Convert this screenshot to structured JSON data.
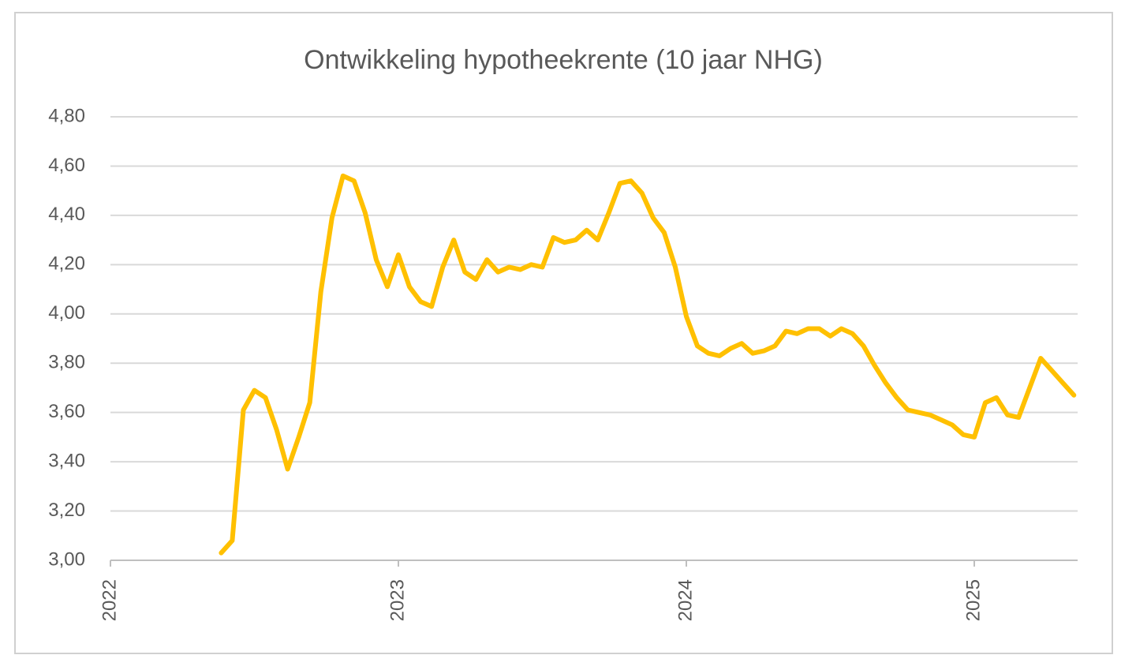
{
  "chart_data": {
    "type": "line",
    "title": "Ontwikkeling hypotheekrente (10 jaar NHG)",
    "categories": [
      "2022",
      null,
      null,
      null,
      null,
      null,
      null,
      null,
      null,
      null,
      null,
      null,
      null,
      null,
      null,
      null,
      null,
      null,
      null,
      null,
      null,
      null,
      null,
      null,
      null,
      null,
      "2023",
      null,
      null,
      null,
      null,
      null,
      null,
      null,
      null,
      null,
      null,
      null,
      null,
      null,
      null,
      null,
      null,
      null,
      null,
      null,
      null,
      null,
      null,
      null,
      null,
      null,
      "2024",
      null,
      null,
      null,
      null,
      null,
      null,
      null,
      null,
      null,
      null,
      null,
      null,
      null,
      null,
      null,
      null,
      null,
      null,
      null,
      null,
      null,
      null,
      null,
      null,
      null,
      "2025",
      null,
      null,
      null,
      null,
      null,
      null,
      null,
      null,
      null
    ],
    "series": [
      {
        "color": "#ffc000",
        "values": [
          null,
          null,
          null,
          null,
          null,
          null,
          null,
          null,
          null,
          null,
          3.03,
          3.08,
          3.61,
          3.69,
          3.66,
          3.53,
          3.37,
          3.5,
          3.64,
          4.09,
          4.39,
          4.56,
          4.54,
          4.41,
          4.22,
          4.11,
          4.24,
          4.11,
          4.05,
          4.03,
          4.19,
          4.3,
          4.17,
          4.14,
          4.22,
          4.17,
          4.19,
          4.18,
          4.2,
          4.19,
          4.31,
          4.29,
          4.3,
          4.34,
          4.3,
          4.41,
          4.53,
          4.54,
          4.49,
          4.39,
          4.33,
          4.19,
          3.99,
          3.87,
          3.84,
          3.83,
          3.86,
          3.88,
          3.84,
          3.85,
          3.87,
          3.93,
          3.92,
          3.94,
          3.94,
          3.91,
          3.94,
          3.92,
          3.87,
          3.79,
          3.72,
          3.66,
          3.61,
          3.6,
          3.59,
          3.57,
          3.55,
          3.51,
          3.5,
          3.64,
          3.66,
          3.59,
          3.58,
          3.7,
          3.82,
          3.77,
          3.72,
          3.67
        ]
      }
    ],
    "ylim": [
      3.0,
      4.8
    ],
    "yticks": [
      {
        "value": 3.0,
        "label": "3,00"
      },
      {
        "value": 3.2,
        "label": "3,20"
      },
      {
        "value": 3.4,
        "label": "3,40"
      },
      {
        "value": 3.6,
        "label": "3,60"
      },
      {
        "value": 3.8,
        "label": "3,80"
      },
      {
        "value": 4.0,
        "label": "4,00"
      },
      {
        "value": 4.2,
        "label": "4,20"
      },
      {
        "value": 4.4,
        "label": "4,40"
      },
      {
        "value": 4.6,
        "label": "4,60"
      },
      {
        "value": 4.8,
        "label": "4,80"
      }
    ],
    "grid": true
  }
}
